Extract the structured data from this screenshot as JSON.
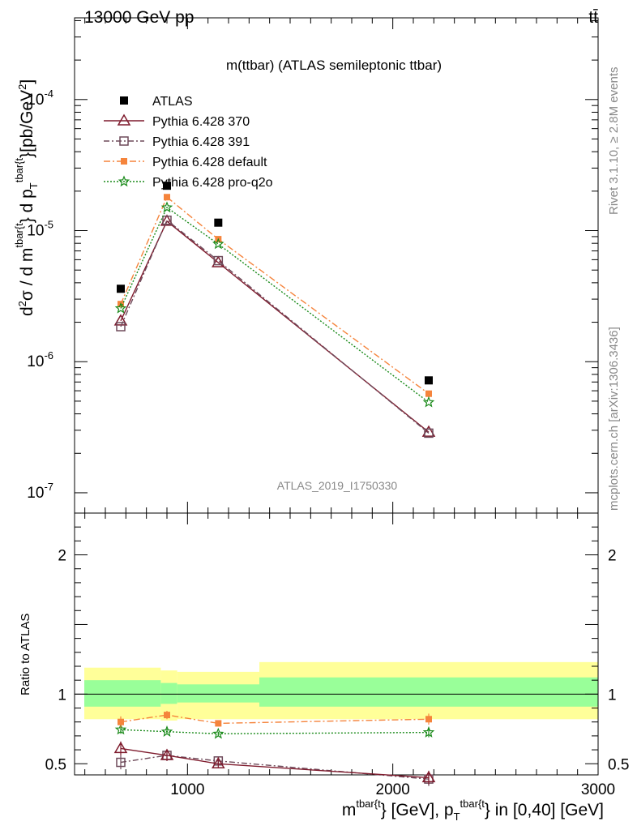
{
  "header": {
    "left": "13000 GeV pp",
    "right": "tt̄",
    "title": "m(ttbar) (ATLAS semileptonic ttbar)",
    "analysis_id": "ATLAS_2019_I1750330"
  },
  "side_text": {
    "rivet": "Rivet 3.1.10, ≥ 2.8M events",
    "mcplots": "mcplots.cern.ch [arXiv:1306.3436]"
  },
  "axes": {
    "ylabel_main": "d²σ / d m^{tbar{t}} d p_T^{tbar{t}} [pb/GeV²]",
    "ylabel_ratio": "Ratio to ATLAS",
    "xlabel": "m^{tbar{t}} [GeV], p_T^{tbar{t}} in [0,40] [GeV]"
  },
  "chart_data": [
    {
      "type": "line",
      "panel": "main",
      "log_y": true,
      "xlim": [
        450,
        3000
      ],
      "ylim": [
        7e-08,
        0.00042
      ],
      "x_ticks": [
        1000,
        2000,
        3000
      ],
      "y_tick_labels": [
        "10^-7",
        "10^-6",
        "10^-5",
        "10^-4"
      ],
      "legend_position": "top-left",
      "series": [
        {
          "name": "ATLAS",
          "style": "data",
          "color": "#000000",
          "x": [
            675,
            900,
            1150,
            2175
          ],
          "y": [
            3.6e-06,
            2.2e-05,
            1.15e-05,
            7.2e-07
          ]
        },
        {
          "name": "Pythia 6.428 370",
          "style": "triangle",
          "color": "#7f1c2e",
          "dash": "",
          "x": [
            675,
            900,
            1150,
            2175
          ],
          "y": [
            2.05e-06,
            1.18e-05,
            5.7e-06,
            2.9e-07
          ]
        },
        {
          "name": "Pythia 6.428 391",
          "style": "square-open",
          "color": "#6e4a5a",
          "dash": "7,3,2,3",
          "x": [
            675,
            900,
            1150,
            2175
          ],
          "y": [
            1.85e-06,
            1.2e-05,
            5.9e-06,
            2.85e-07
          ]
        },
        {
          "name": "Pythia 6.428 default",
          "style": "square-filled",
          "color": "#f5843c",
          "dash": "8,3,2,3",
          "x": [
            675,
            900,
            1150,
            2175
          ],
          "y": [
            2.75e-06,
            1.8e-05,
            8.6e-06,
            5.7e-07
          ]
        },
        {
          "name": "Pythia 6.428 pro-q2o",
          "style": "star",
          "color": "#1a8a1a",
          "dash": "2,2",
          "x": [
            675,
            900,
            1150,
            2175
          ],
          "y": [
            2.55e-06,
            1.5e-05,
            7.9e-06,
            4.9e-07
          ]
        }
      ]
    },
    {
      "type": "line",
      "panel": "ratio",
      "xlim": [
        450,
        3000
      ],
      "ylim": [
        0.42,
        2.3
      ],
      "y_ticks": [
        0.5,
        1,
        2
      ],
      "bands": [
        {
          "x0": 450,
          "x1": 870,
          "inner": [
            0.91,
            1.1
          ],
          "outer": [
            0.82,
            1.19
          ]
        },
        {
          "x0": 870,
          "x1": 950,
          "inner": [
            0.93,
            1.08
          ],
          "outer": [
            0.81,
            1.17
          ]
        },
        {
          "x0": 950,
          "x1": 1350,
          "inner": [
            0.94,
            1.07
          ],
          "outer": [
            0.82,
            1.16
          ]
        },
        {
          "x0": 1350,
          "x1": 3000,
          "inner": [
            0.91,
            1.12
          ],
          "outer": [
            0.82,
            1.23
          ]
        }
      ],
      "band_colors": {
        "inner": "#99ff99",
        "outer": "#ffff99"
      },
      "series": [
        {
          "name": "Pythia 6.428 370",
          "style": "triangle",
          "color": "#7f1c2e",
          "dash": "",
          "x": [
            675,
            900,
            1150,
            2175
          ],
          "y": [
            0.61,
            0.56,
            0.5,
            0.4
          ],
          "err": [
            0.05,
            0.04,
            0.03,
            0.05
          ]
        },
        {
          "name": "Pythia 6.428 391",
          "style": "square-open",
          "color": "#6e4a5a",
          "dash": "7,3,2,3",
          "x": [
            675,
            900,
            1150,
            2175
          ],
          "y": [
            0.51,
            0.56,
            0.52,
            0.39
          ],
          "err": [
            0.05,
            0.04,
            0.03,
            0.05
          ]
        },
        {
          "name": "Pythia 6.428 default",
          "style": "square-filled",
          "color": "#f5843c",
          "dash": "8,3,2,3",
          "x": [
            675,
            900,
            1150,
            2175
          ],
          "y": [
            0.8,
            0.85,
            0.79,
            0.82
          ],
          "err": [
            0.04,
            0.03,
            0.02,
            0.04
          ]
        },
        {
          "name": "Pythia 6.428 pro-q2o",
          "style": "star",
          "color": "#1a8a1a",
          "dash": "2,2",
          "x": [
            675,
            900,
            1150,
            2175
          ],
          "y": [
            0.745,
            0.73,
            0.715,
            0.725
          ],
          "err": [
            0.03,
            0.02,
            0.015,
            0.035
          ]
        }
      ]
    }
  ]
}
